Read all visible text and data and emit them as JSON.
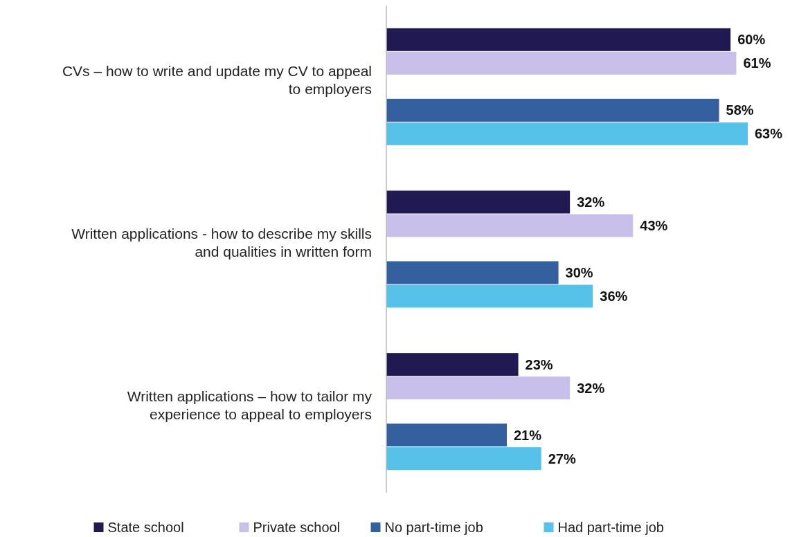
{
  "chart_data": {
    "type": "bar",
    "orientation": "horizontal",
    "categories": [
      "CVs – how to write and update my CV to appeal to employers",
      "Written applications - how to describe my skills and qualities in written form",
      "Written applications – how to tailor my experience to appeal to employers"
    ],
    "series": [
      {
        "name": "State school",
        "color": "#211a52",
        "values": [
          60,
          32,
          23
        ],
        "value_labels": [
          "60%",
          "32%",
          "23%"
        ]
      },
      {
        "name": "Private school",
        "color": "#c8c0ea",
        "values": [
          61,
          43,
          32
        ],
        "value_labels": [
          "61%",
          "43%",
          "32%"
        ]
      },
      {
        "name": "No part-time job",
        "color": "#35609f",
        "values": [
          58,
          30,
          21
        ],
        "value_labels": [
          "58%",
          "30%",
          "21%"
        ]
      },
      {
        "name": "Had part-time job",
        "color": "#56c1e9",
        "values": [
          63,
          36,
          27
        ],
        "value_labels": [
          "63%",
          "36%",
          "27%"
        ]
      }
    ],
    "legend": "bottom"
  }
}
